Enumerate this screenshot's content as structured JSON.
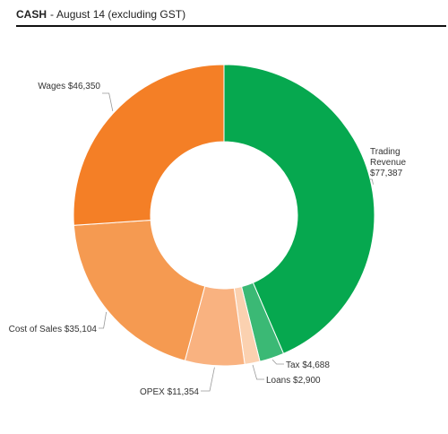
{
  "header": {
    "title": "CASH",
    "separator": "-",
    "subtitle": "August 14 (excluding GST)"
  },
  "chart_data": {
    "type": "pie",
    "donut": true,
    "slices": [
      {
        "label": "Trading Revenue",
        "value": 77387,
        "value_text": "$77,387",
        "color": "#06a84f"
      },
      {
        "label": "Tax",
        "value": 4688,
        "value_text": "$4,688",
        "color": "#3bb975"
      },
      {
        "label": "Loans",
        "value": 2900,
        "value_text": "$2,900",
        "color": "#fbd1b0"
      },
      {
        "label": "OPEX",
        "value": 11354,
        "value_text": "$11,354",
        "color": "#f9b280"
      },
      {
        "label": "Cost of Sales",
        "value": 35104,
        "value_text": "$35,104",
        "color": "#f59a51"
      },
      {
        "label": "Wages",
        "value": 46350,
        "value_text": "$46,350",
        "color": "#f47f26"
      }
    ]
  }
}
